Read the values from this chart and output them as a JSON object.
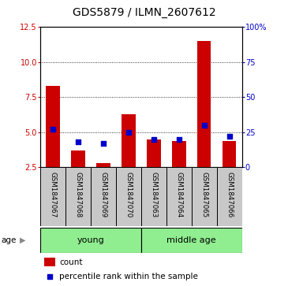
{
  "title": "GDS5879 / ILMN_2607612",
  "samples": [
    "GSM1847067",
    "GSM1847068",
    "GSM1847069",
    "GSM1847070",
    "GSM1847063",
    "GSM1847064",
    "GSM1847065",
    "GSM1847066"
  ],
  "red_values": [
    8.3,
    3.7,
    2.8,
    6.3,
    4.5,
    4.4,
    11.5,
    4.4
  ],
  "blue_values": [
    27,
    18,
    17,
    25,
    20,
    20,
    30,
    22
  ],
  "ylim_left": [
    2.5,
    12.5
  ],
  "ylim_right": [
    0,
    100
  ],
  "yticks_left": [
    2.5,
    5.0,
    7.5,
    10.0,
    12.5
  ],
  "yticks_right": [
    0,
    25,
    50,
    75,
    100
  ],
  "ytick_labels_right": [
    "0",
    "25",
    "50",
    "75",
    "100%"
  ],
  "groups": [
    {
      "label": "young",
      "start": 0,
      "end": 3
    },
    {
      "label": "middle age",
      "start": 4,
      "end": 7
    }
  ],
  "age_label": "age",
  "bar_color": "#cc0000",
  "dot_color": "#0000cc",
  "background_color": "#c8c8c8",
  "green_color": "#90ee90",
  "bar_width": 0.55,
  "dot_size": 22,
  "title_fontsize": 10,
  "label_fontsize": 7,
  "group_fontsize": 8,
  "legend_fontsize": 7.5,
  "grid_yticks": [
    5.0,
    7.5,
    10.0
  ]
}
